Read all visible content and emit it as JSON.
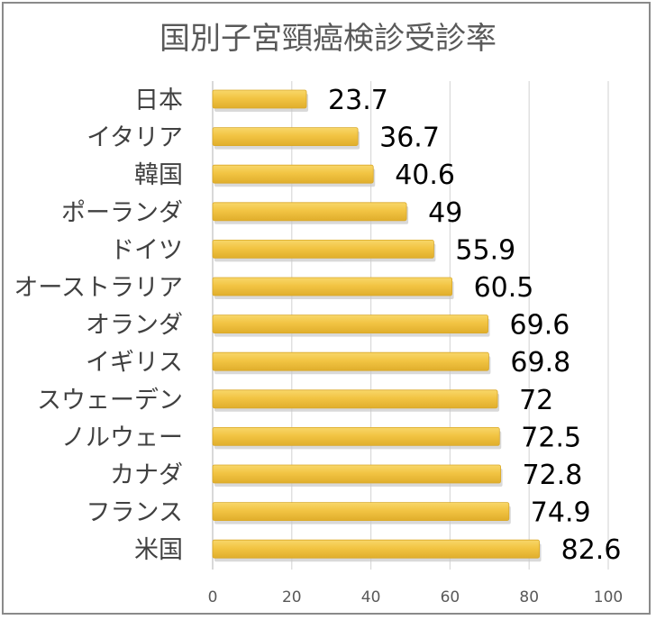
{
  "chart_data": {
    "type": "bar",
    "orientation": "horizontal",
    "title": "国別子宮頸癌検診受診率",
    "categories": [
      "日本",
      "イタリア",
      "韓国",
      "ポーランダ",
      "ドイツ",
      "オーストラリア",
      "オランダ",
      "イギリス",
      "スウェーデン",
      "ノルウェー",
      "カナダ",
      "フランス",
      "米国"
    ],
    "values": [
      23.7,
      36.7,
      40.6,
      49,
      55.9,
      60.5,
      69.6,
      69.8,
      72,
      72.5,
      72.8,
      74.9,
      82.6
    ],
    "data_labels": [
      "23.7",
      "36.7",
      "40.6",
      "49",
      "55.9",
      "60.5",
      "69.6",
      "69.8",
      "72",
      "72.5",
      "72.8",
      "74.9",
      "82.6"
    ],
    "xlim": [
      0,
      100
    ],
    "xticks": [
      0,
      20,
      40,
      60,
      80,
      100
    ],
    "xtick_labels": [
      "0",
      "20",
      "40",
      "60",
      "80",
      "100"
    ],
    "grid": "vertical",
    "legend": "none",
    "colors": {
      "bar": "#F2C443",
      "bar_shadow": "#C9C9C9",
      "grid": "#D9D9D9",
      "axis": "#BFBFBF",
      "title": "#595959",
      "category_label": "#404040",
      "value_label": "#000000",
      "tick_label": "#595959",
      "frame": "#8A8A8A"
    }
  }
}
